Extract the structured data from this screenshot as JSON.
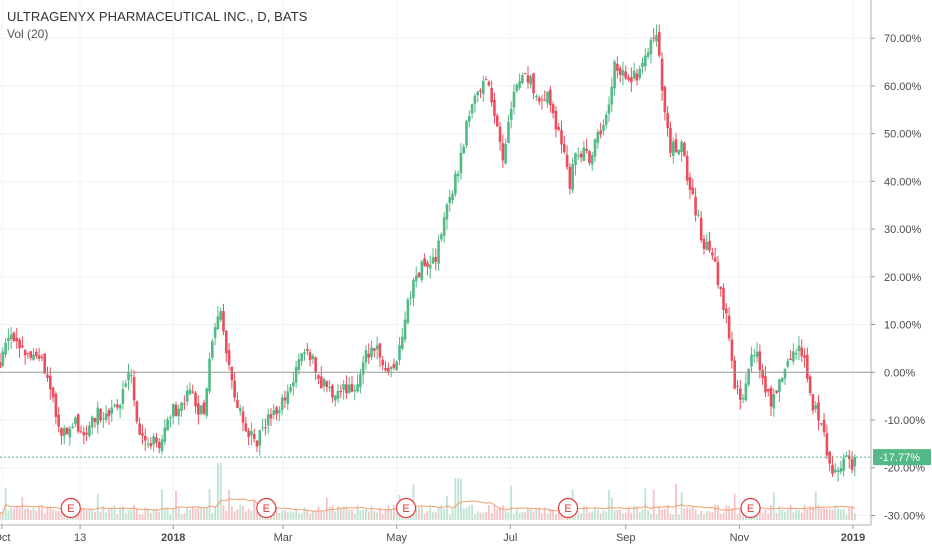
{
  "header": {
    "title": "ULTRAGENYX PHARMACEUTICAL INC., D, BATS",
    "volume_label": "Vol (20)"
  },
  "colors": {
    "up": "#53b987",
    "down": "#eb4d5c",
    "volume_up": "#bfe3d0",
    "volume_down": "#f7c2c6",
    "volume_ma": "#f0a070",
    "zero_line": "#999999",
    "last_price_line": "#53b987",
    "earnings_marker": "#e0383b"
  },
  "chart_data": {
    "type": "candlestick",
    "title": "ULTRAGENYX PHARMACEUTICAL INC., D, BATS",
    "y_axis": {
      "unit": "percent change",
      "range": [
        -32,
        78
      ],
      "ticks": [
        "70.00%",
        "60.00%",
        "50.00%",
        "40.00%",
        "30.00%",
        "20.00%",
        "10.00%",
        "0.00%",
        "-10.00%",
        "-20.00%",
        "-30.00%"
      ],
      "tick_values": [
        70,
        60,
        50,
        40,
        30,
        20,
        10,
        0,
        -10,
        -20,
        -30
      ]
    },
    "x_axis": {
      "ticks": [
        {
          "label": "Oct",
          "day": 1,
          "bold": false
        },
        {
          "label": "13",
          "day": 43,
          "bold": false
        },
        {
          "label": "2018",
          "day": 93,
          "bold": true
        },
        {
          "label": "Mar",
          "day": 152,
          "bold": false
        },
        {
          "label": "May",
          "day": 213,
          "bold": false
        },
        {
          "label": "Jul",
          "day": 274,
          "bold": false
        },
        {
          "label": "Sep",
          "day": 336,
          "bold": false
        },
        {
          "label": "Nov",
          "day": 397,
          "bold": false
        },
        {
          "label": "2019",
          "day": 458,
          "bold": true
        }
      ],
      "range_days": [
        0,
        465
      ]
    },
    "last_value": -17.77,
    "last_value_label": "-17.77%",
    "earnings_label": "E",
    "earnings_days": [
      38,
      143,
      218,
      305,
      403
    ],
    "price_path": [
      {
        "day": 0,
        "value": 2
      },
      {
        "day": 6,
        "value": 8
      },
      {
        "day": 14,
        "value": 4
      },
      {
        "day": 22,
        "value": 3
      },
      {
        "day": 28,
        "value": -6
      },
      {
        "day": 34,
        "value": -13
      },
      {
        "day": 40,
        "value": -10
      },
      {
        "day": 46,
        "value": -13
      },
      {
        "day": 52,
        "value": -9
      },
      {
        "day": 60,
        "value": -8
      },
      {
        "day": 66,
        "value": -5
      },
      {
        "day": 70,
        "value": 0
      },
      {
        "day": 74,
        "value": -12
      },
      {
        "day": 80,
        "value": -15
      },
      {
        "day": 86,
        "value": -15
      },
      {
        "day": 92,
        "value": -8
      },
      {
        "day": 98,
        "value": -7
      },
      {
        "day": 102,
        "value": -4
      },
      {
        "day": 106,
        "value": -8
      },
      {
        "day": 110,
        "value": -9
      },
      {
        "day": 114,
        "value": 8
      },
      {
        "day": 118,
        "value": 13
      },
      {
        "day": 122,
        "value": 4
      },
      {
        "day": 126,
        "value": -5
      },
      {
        "day": 132,
        "value": -12
      },
      {
        "day": 138,
        "value": -15
      },
      {
        "day": 144,
        "value": -9
      },
      {
        "day": 150,
        "value": -7
      },
      {
        "day": 156,
        "value": -3
      },
      {
        "day": 160,
        "value": 2
      },
      {
        "day": 166,
        "value": 4
      },
      {
        "day": 172,
        "value": -2
      },
      {
        "day": 178,
        "value": -4
      },
      {
        "day": 184,
        "value": -3
      },
      {
        "day": 190,
        "value": -4
      },
      {
        "day": 196,
        "value": 3
      },
      {
        "day": 202,
        "value": 5
      },
      {
        "day": 208,
        "value": -1
      },
      {
        "day": 214,
        "value": 3
      },
      {
        "day": 218,
        "value": 12
      },
      {
        "day": 222,
        "value": 20
      },
      {
        "day": 228,
        "value": 23
      },
      {
        "day": 234,
        "value": 24
      },
      {
        "day": 240,
        "value": 35
      },
      {
        "day": 246,
        "value": 42
      },
      {
        "day": 252,
        "value": 55
      },
      {
        "day": 258,
        "value": 58
      },
      {
        "day": 262,
        "value": 62
      },
      {
        "day": 266,
        "value": 52
      },
      {
        "day": 270,
        "value": 45
      },
      {
        "day": 274,
        "value": 55
      },
      {
        "day": 278,
        "value": 60
      },
      {
        "day": 284,
        "value": 62
      },
      {
        "day": 290,
        "value": 56
      },
      {
        "day": 294,
        "value": 58
      },
      {
        "day": 298,
        "value": 52
      },
      {
        "day": 302,
        "value": 48
      },
      {
        "day": 306,
        "value": 40
      },
      {
        "day": 310,
        "value": 47
      },
      {
        "day": 316,
        "value": 45
      },
      {
        "day": 322,
        "value": 50
      },
      {
        "day": 326,
        "value": 55
      },
      {
        "day": 330,
        "value": 65
      },
      {
        "day": 336,
        "value": 61
      },
      {
        "day": 342,
        "value": 62
      },
      {
        "day": 348,
        "value": 66
      },
      {
        "day": 352,
        "value": 72
      },
      {
        "day": 356,
        "value": 58
      },
      {
        "day": 360,
        "value": 47
      },
      {
        "day": 366,
        "value": 47
      },
      {
        "day": 372,
        "value": 36
      },
      {
        "day": 378,
        "value": 27
      },
      {
        "day": 384,
        "value": 22
      },
      {
        "day": 390,
        "value": 12
      },
      {
        "day": 394,
        "value": -2
      },
      {
        "day": 398,
        "value": -7
      },
      {
        "day": 402,
        "value": 0
      },
      {
        "day": 406,
        "value": 6
      },
      {
        "day": 410,
        "value": -2
      },
      {
        "day": 414,
        "value": -6
      },
      {
        "day": 418,
        "value": -2
      },
      {
        "day": 424,
        "value": 3
      },
      {
        "day": 428,
        "value": 5
      },
      {
        "day": 432,
        "value": 2
      },
      {
        "day": 436,
        "value": -6
      },
      {
        "day": 440,
        "value": -10
      },
      {
        "day": 444,
        "value": -16
      },
      {
        "day": 448,
        "value": -22
      },
      {
        "day": 452,
        "value": -20
      },
      {
        "day": 455,
        "value": -17
      },
      {
        "day": 458,
        "value": -19.5
      },
      {
        "day": 460,
        "value": -17.77
      }
    ]
  }
}
